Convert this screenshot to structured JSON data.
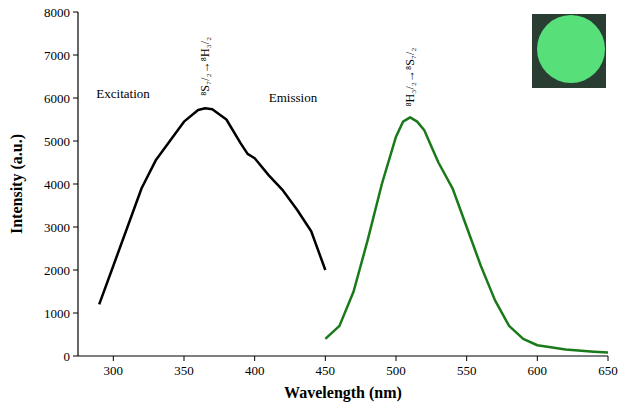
{
  "chart_data": {
    "type": "line",
    "x_label": "Wavelength (nm)",
    "y_label": "Intensity (a.u.)",
    "xlim": [
      275,
      650
    ],
    "ylim": [
      0,
      8000
    ],
    "xticks": [
      300,
      350,
      400,
      450,
      500,
      550,
      600,
      650
    ],
    "yticks": [
      0,
      1000,
      2000,
      3000,
      4000,
      5000,
      6000,
      7000,
      8000
    ],
    "grid": false,
    "series": [
      {
        "color": "#000000",
        "x": [
          290,
          300,
          310,
          320,
          330,
          340,
          350,
          360,
          365,
          370,
          380,
          390,
          395,
          400,
          410,
          420,
          430,
          440,
          450
        ],
        "values": [
          1200,
          2100,
          3000,
          3900,
          4550,
          5000,
          5450,
          5720,
          5760,
          5740,
          5500,
          4950,
          4700,
          4600,
          4200,
          3850,
          3400,
          2900,
          2000
        ]
      },
      {
        "color": "#1a7a1a",
        "x": [
          450,
          460,
          470,
          480,
          490,
          500,
          505,
          510,
          515,
          520,
          530,
          540,
          550,
          560,
          570,
          580,
          590,
          600,
          620,
          640,
          650
        ],
        "values": [
          400,
          700,
          1500,
          2700,
          4000,
          5100,
          5450,
          5550,
          5450,
          5250,
          4500,
          3900,
          3000,
          2100,
          1300,
          700,
          400,
          250,
          150,
          100,
          80
        ]
      }
    ],
    "annotations": [
      {
        "text": "Excitation",
        "x": 288,
        "y": 6000
      },
      {
        "text": "Emission",
        "x": 410,
        "y": 5900
      },
      {
        "text": "⁸S₇/₂→⁸H₃/₂",
        "x": 365,
        "y": 6050
      },
      {
        "text": "⁸H₃/₂→⁸S₇/₂",
        "x": 510,
        "y": 5800
      }
    ]
  }
}
